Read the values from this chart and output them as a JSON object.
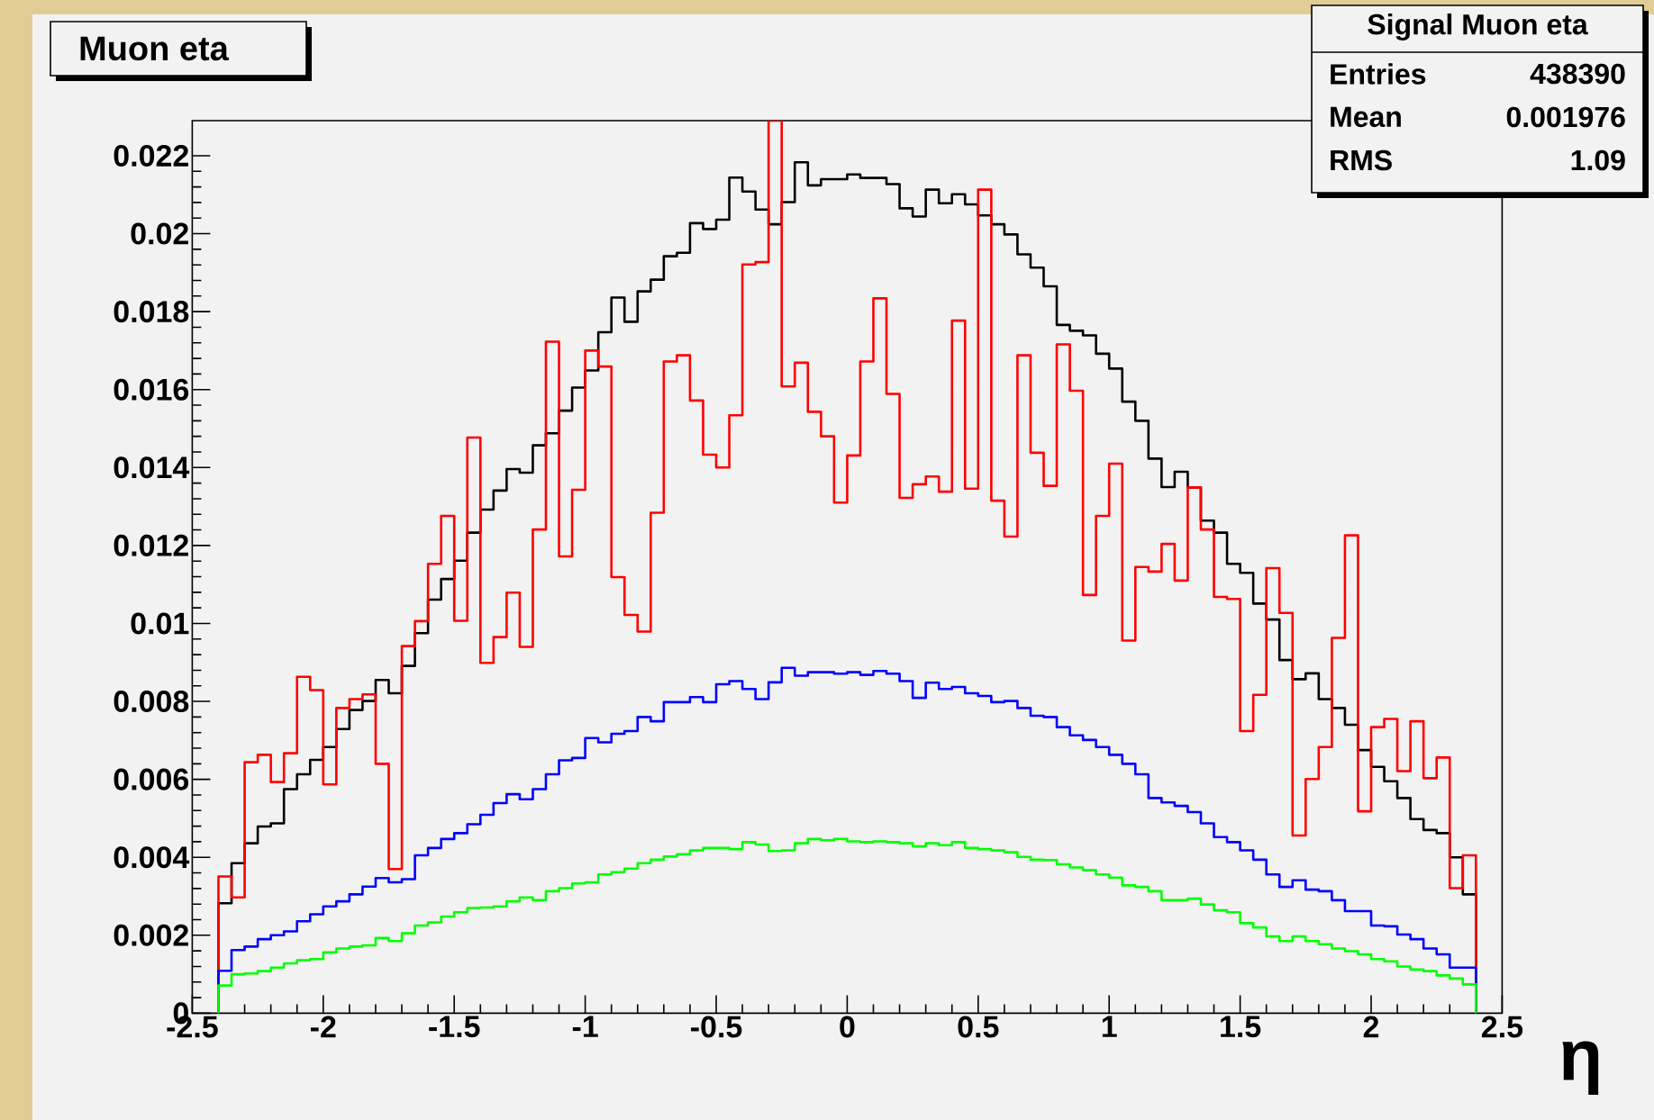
{
  "chart_data": {
    "type": "histogram",
    "title": "Muon eta",
    "xlabel": "η",
    "annotations": [
      "Signal Muon eta",
      "Entries",
      "438390",
      "Mean",
      "0.001976",
      "RMS",
      "1.09"
    ],
    "xlim": [
      -2.5,
      2.5
    ],
    "ylim": [
      0,
      0.0229
    ],
    "xticks": [
      -2.5,
      -2,
      -1.5,
      -1,
      -0.5,
      0,
      0.5,
      1,
      1.5,
      2,
      2.5
    ],
    "yticks": [
      0,
      0.002,
      0.004,
      0.006,
      0.008,
      0.01,
      0.012,
      0.014,
      0.016,
      0.018,
      0.02,
      0.022
    ],
    "bins": [
      -2.4,
      -2.35,
      -2.3,
      -2.25,
      -2.2,
      -2.15,
      -2.1,
      -2.05,
      -2,
      -1.95,
      -1.9,
      -1.85,
      -1.8,
      -1.75,
      -1.7,
      -1.65,
      -1.6,
      -1.55,
      -1.5,
      -1.45,
      -1.4,
      -1.35,
      -1.3,
      -1.25,
      -1.2,
      -1.15,
      -1.1,
      -1.05,
      -1,
      -0.95,
      -0.9,
      -0.85,
      -0.8,
      -0.75,
      -0.7,
      -0.65,
      -0.6,
      -0.55,
      -0.5,
      -0.45,
      -0.4,
      -0.35,
      -0.3,
      -0.25,
      -0.2,
      -0.15,
      -0.1,
      -0.05,
      0,
      0.05,
      0.1,
      0.15,
      0.2,
      0.25,
      0.3,
      0.35,
      0.4,
      0.45,
      0.5,
      0.55,
      0.6,
      0.65,
      0.7,
      0.75,
      0.8,
      0.85,
      0.9,
      0.95,
      1,
      1.05,
      1.1,
      1.15,
      1.2,
      1.25,
      1.3,
      1.35,
      1.4,
      1.45,
      1.5,
      1.55,
      1.6,
      1.65,
      1.7,
      1.75,
      1.8,
      1.85,
      1.9,
      1.95,
      2,
      2.05,
      2.1,
      2.15,
      2.2,
      2.25,
      2.3,
      2.35,
      2.4
    ],
    "series": [
      {
        "color": "#000000",
        "values": [
          0.00282,
          0.00385,
          0.00436,
          0.00479,
          0.00487,
          0.00575,
          0.00613,
          0.0065,
          0.00683,
          0.00729,
          0.00778,
          0.00801,
          0.00855,
          0.00821,
          0.00891,
          0.00975,
          0.01061,
          0.01114,
          0.01161,
          0.01233,
          0.01292,
          0.01341,
          0.01396,
          0.01387,
          0.01457,
          0.01488,
          0.01546,
          0.01605,
          0.01649,
          0.01747,
          0.01836,
          0.01774,
          0.01852,
          0.01882,
          0.01942,
          0.01951,
          0.02027,
          0.02012,
          0.02036,
          0.02144,
          0.02108,
          0.02062,
          0.02024,
          0.02081,
          0.02183,
          0.02124,
          0.0214,
          0.0214,
          0.02152,
          0.02143,
          0.02143,
          0.02127,
          0.02065,
          0.02044,
          0.02113,
          0.02078,
          0.02101,
          0.02075,
          0.02047,
          0.02024,
          0.01998,
          0.01947,
          0.01913,
          0.01865,
          0.01766,
          0.01751,
          0.01739,
          0.01692,
          0.01654,
          0.01569,
          0.0152,
          0.01423,
          0.0135,
          0.01389,
          0.01349,
          0.01264,
          0.01233,
          0.01153,
          0.0113,
          0.01051,
          0.0101,
          0.00906,
          0.00857,
          0.00872,
          0.00806,
          0.00783,
          0.0074,
          0.00675,
          0.00632,
          0.00595,
          0.00552,
          0.00498,
          0.0047,
          0.00462,
          0.004,
          0.00305
        ]
      },
      {
        "color": "#ff0000",
        "values": [
          0.00351,
          0.00297,
          0.00644,
          0.00663,
          0.00593,
          0.00667,
          0.00863,
          0.00829,
          0.00587,
          0.00783,
          0.00806,
          0.00818,
          0.0064,
          0.0037,
          0.00942,
          0.01006,
          0.01153,
          0.01276,
          0.01007,
          0.01477,
          0.00899,
          0.00965,
          0.01079,
          0.0094,
          0.01241,
          0.01723,
          0.01172,
          0.01343,
          0.017,
          0.01659,
          0.01119,
          0.01022,
          0.00979,
          0.01284,
          0.01672,
          0.01688,
          0.01572,
          0.01433,
          0.014,
          0.01534,
          0.01921,
          0.01927,
          0.0229,
          0.01608,
          0.01669,
          0.01543,
          0.0148,
          0.0131,
          0.01431,
          0.01672,
          0.01834,
          0.01589,
          0.01322,
          0.01357,
          0.01377,
          0.01338,
          0.01777,
          0.01346,
          0.02113,
          0.01315,
          0.01223,
          0.01688,
          0.01438,
          0.01353,
          0.01716,
          0.01597,
          0.01073,
          0.01276,
          0.0141,
          0.00956,
          0.01145,
          0.01133,
          0.01204,
          0.0111,
          0.01349,
          0.01241,
          0.01068,
          0.01063,
          0.00724,
          0.00817,
          0.01142,
          0.01027,
          0.00456,
          0.00601,
          0.00683,
          0.00963,
          0.01226,
          0.00518,
          0.00734,
          0.00755,
          0.00621,
          0.00749,
          0.00603,
          0.00656,
          0.00321,
          0.00405
        ]
      },
      {
        "color": "#0000ff",
        "values": [
          0.00109,
          0.00162,
          0.00171,
          0.0019,
          0.002,
          0.0021,
          0.00236,
          0.00254,
          0.00274,
          0.00287,
          0.00305,
          0.00325,
          0.00347,
          0.00336,
          0.00344,
          0.00405,
          0.00424,
          0.00447,
          0.00462,
          0.00485,
          0.00509,
          0.00539,
          0.00562,
          0.00549,
          0.00575,
          0.00613,
          0.00649,
          0.00655,
          0.00706,
          0.00695,
          0.00717,
          0.00724,
          0.0076,
          0.00749,
          0.00798,
          0.00798,
          0.00811,
          0.00798,
          0.00844,
          0.00852,
          0.00832,
          0.00806,
          0.00849,
          0.00886,
          0.00866,
          0.00875,
          0.00875,
          0.00871,
          0.00875,
          0.00868,
          0.00878,
          0.00871,
          0.00852,
          0.00809,
          0.00848,
          0.00832,
          0.00837,
          0.00821,
          0.00814,
          0.00798,
          0.00801,
          0.00783,
          0.00763,
          0.0076,
          0.00734,
          0.00713,
          0.00701,
          0.00683,
          0.00663,
          0.0064,
          0.00613,
          0.00552,
          0.00541,
          0.00532,
          0.00516,
          0.00487,
          0.00452,
          0.00439,
          0.00418,
          0.00394,
          0.00356,
          0.00324,
          0.00341,
          0.00317,
          0.00313,
          0.0029,
          0.00262,
          0.00262,
          0.00225,
          0.00223,
          0.00202,
          0.0019,
          0.00166,
          0.00151,
          0.00117,
          0.00117
        ]
      },
      {
        "color": "#00ff00",
        "values": [
          0.00071,
          0.001,
          0.00102,
          0.00108,
          0.00117,
          0.00128,
          0.00136,
          0.00139,
          0.00156,
          0.00166,
          0.00171,
          0.00174,
          0.00193,
          0.00185,
          0.00205,
          0.00225,
          0.00233,
          0.00248,
          0.00259,
          0.0027,
          0.00271,
          0.00274,
          0.00287,
          0.00297,
          0.0029,
          0.00313,
          0.00321,
          0.00333,
          0.00336,
          0.00356,
          0.00362,
          0.00371,
          0.00385,
          0.00394,
          0.00402,
          0.00408,
          0.00418,
          0.00424,
          0.00424,
          0.00421,
          0.00439,
          0.00433,
          0.00416,
          0.00418,
          0.00436,
          0.00447,
          0.00444,
          0.00447,
          0.00441,
          0.00439,
          0.00441,
          0.00439,
          0.00436,
          0.00428,
          0.00436,
          0.00431,
          0.00439,
          0.00424,
          0.00421,
          0.00418,
          0.00413,
          0.00401,
          0.00394,
          0.00393,
          0.00382,
          0.00374,
          0.00367,
          0.00356,
          0.00348,
          0.00328,
          0.00324,
          0.00313,
          0.0029,
          0.0029,
          0.00294,
          0.00279,
          0.00264,
          0.00259,
          0.00231,
          0.0022,
          0.00197,
          0.00185,
          0.00197,
          0.00185,
          0.00177,
          0.00166,
          0.00159,
          0.00151,
          0.00139,
          0.00133,
          0.0012,
          0.00112,
          0.00108,
          0.00097,
          0.00089,
          0.00074
        ]
      }
    ]
  }
}
